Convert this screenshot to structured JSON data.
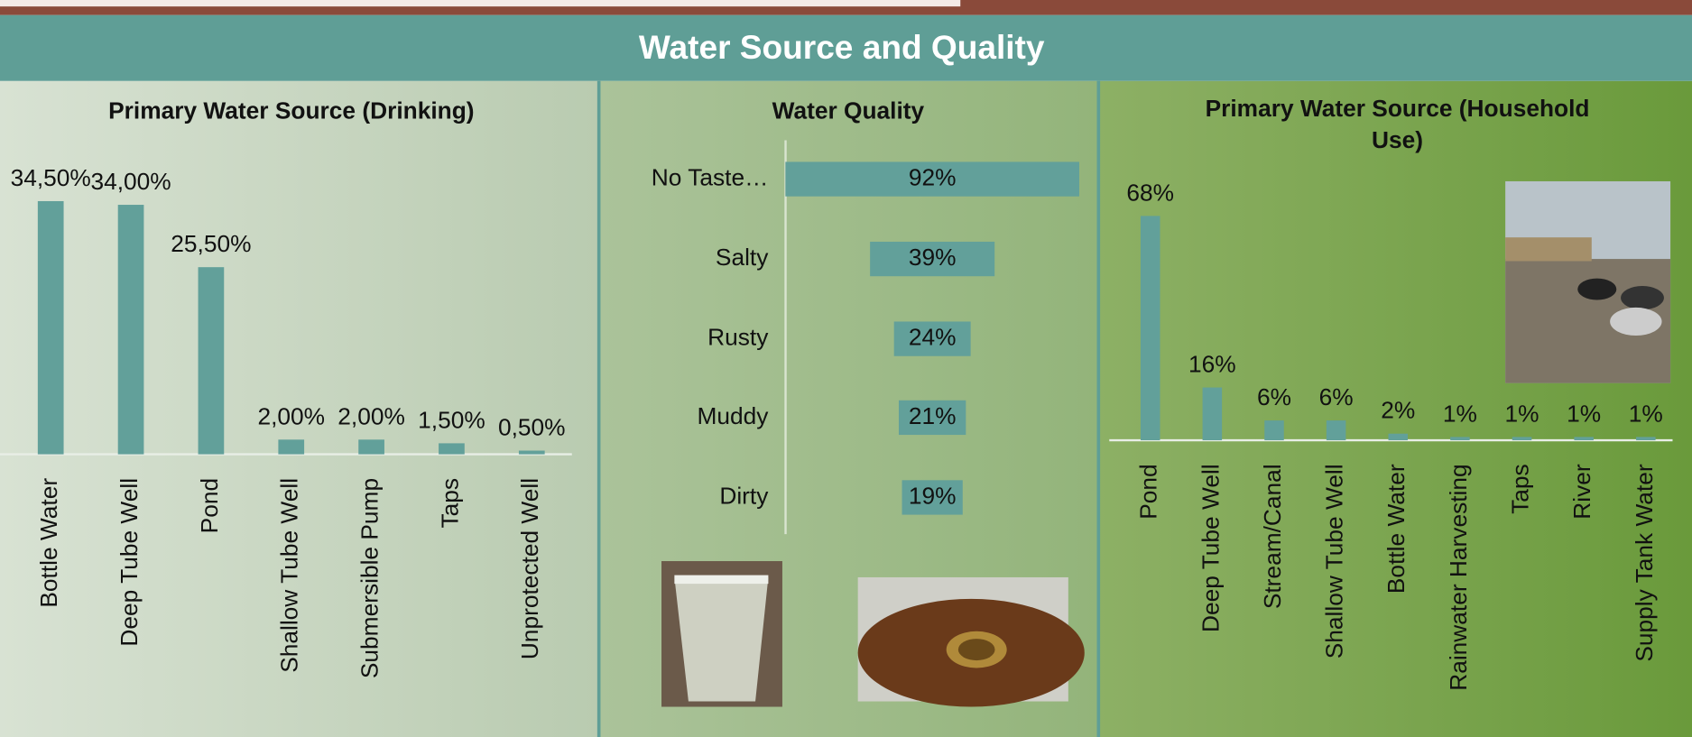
{
  "title": "Water Source and Quality",
  "chart_data": [
    {
      "type": "bar",
      "title": "Primary Water Source (Drinking)",
      "categories": [
        "Bottle Water",
        "Deep Tube Well",
        "Pond",
        "Shallow Tube Well",
        "Submersible Pump",
        "Taps",
        "Unprotected Well"
      ],
      "values": [
        34.5,
        34,
        25.5,
        2,
        2,
        1.5,
        0.5
      ],
      "value_labels": [
        "34,50%",
        "34,00%",
        "25,50%",
        "2,00%",
        "2,00%",
        "1,50%",
        "0,50%"
      ],
      "color": "#62a09a",
      "ylim": [
        0,
        35
      ]
    },
    {
      "type": "funnel",
      "title": "Water Quality",
      "categories": [
        "No Taste…",
        "Salty",
        "Rusty",
        "Muddy",
        "Dirty"
      ],
      "values": [
        92,
        39,
        24,
        21,
        19
      ],
      "value_labels": [
        "92%",
        "39%",
        "24%",
        "21%",
        "19%"
      ],
      "color": "#62a09a",
      "xlim": [
        0,
        100
      ]
    },
    {
      "type": "bar",
      "title": "Primary Water Source (Household Use)",
      "categories": [
        "Pond",
        "Deep Tube Well",
        "Stream/Canal",
        "Shallow Tube Well",
        "Bottle Water",
        "Rainwater Harvesting",
        "Taps",
        "River",
        "Supply Tank Water"
      ],
      "values": [
        68,
        16,
        6,
        6,
        2,
        1,
        1,
        1,
        1
      ],
      "value_labels": [
        "68%",
        "16%",
        "6%",
        "6%",
        "2%",
        "1%",
        "1%",
        "1%",
        "1%"
      ],
      "color": "#62a09a",
      "ylim": [
        0,
        70
      ]
    }
  ]
}
